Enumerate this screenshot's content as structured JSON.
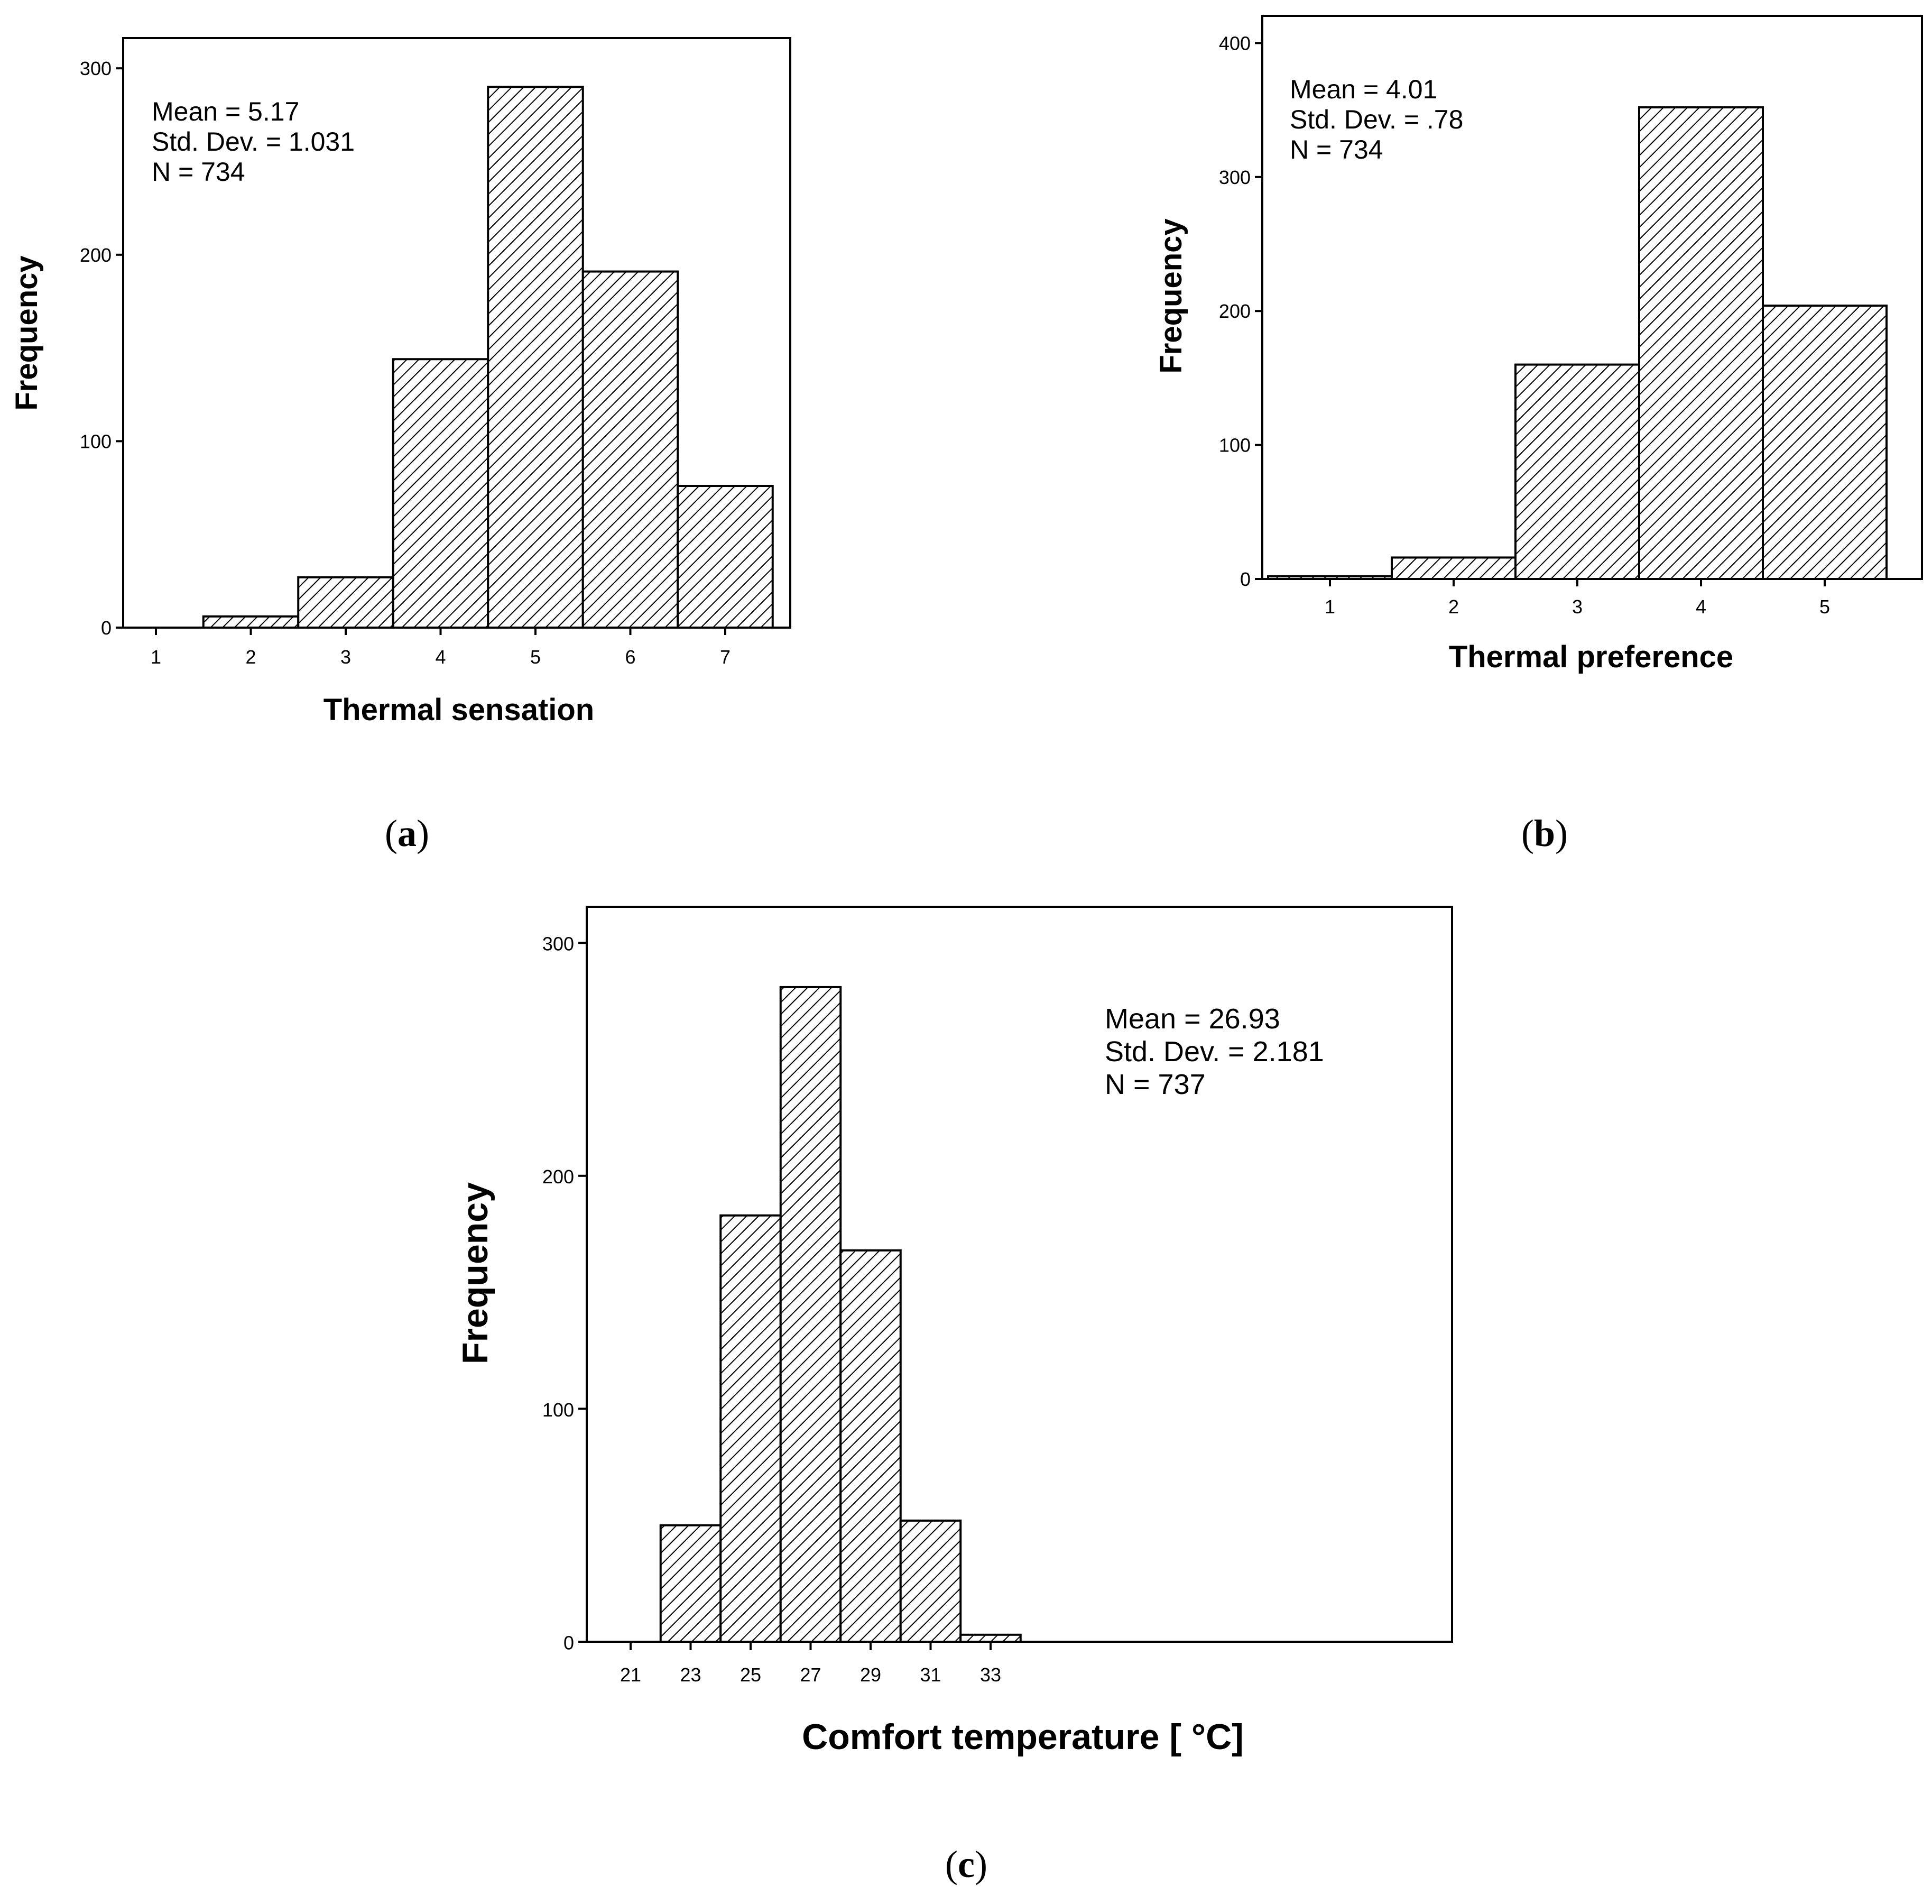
{
  "chart_data": [
    {
      "id": "a",
      "type": "bar",
      "subtype": "histogram",
      "caption_open": "(",
      "caption_letter": "a",
      "caption_close": ")",
      "xlabel": "Thermal sensation",
      "ylabel": "Frequency",
      "categories": [
        "1",
        "2",
        "3",
        "4",
        "5",
        "6",
        "7"
      ],
      "values": [
        0,
        6,
        27,
        144,
        290,
        191,
        76
      ],
      "x_ticks": [
        "1",
        "2",
        "3",
        "4",
        "5",
        "6",
        "7"
      ],
      "y_ticks": [
        "0",
        "100",
        "200",
        "300"
      ],
      "ylim": [
        0,
        315
      ],
      "stats": {
        "mean": "Mean =  5.17",
        "std": "Std. Dev. =   1.031",
        "n": "N =  734"
      }
    },
    {
      "id": "b",
      "type": "bar",
      "subtype": "histogram",
      "caption_open": "(",
      "caption_letter": "b",
      "caption_close": ")",
      "xlabel": "Thermal preference",
      "ylabel": "Frequency",
      "categories": [
        "1",
        "2",
        "3",
        "4",
        "5"
      ],
      "values": [
        2,
        16,
        160,
        352,
        204
      ],
      "x_ticks": [
        "1",
        "2",
        "3",
        "4",
        "5"
      ],
      "y_ticks": [
        "0",
        "100",
        "200",
        "300",
        "400"
      ],
      "ylim": [
        0,
        420
      ],
      "stats": {
        "mean": "Mean =  4.01",
        "std": "Std. Dev. =    .78",
        "n": "N =  734"
      }
    },
    {
      "id": "c",
      "type": "bar",
      "subtype": "histogram",
      "caption_open": "(",
      "caption_letter": "c",
      "caption_close": ")",
      "xlabel": "Comfort temperature [ °C]",
      "ylabel": "Frequency",
      "bin_edges": [
        22,
        24,
        26,
        28,
        30,
        32,
        34
      ],
      "values": [
        50,
        183,
        281,
        168,
        52,
        3
      ],
      "x_ticks": [
        "21",
        "23",
        "25",
        "27",
        "29",
        "31",
        "33"
      ],
      "y_ticks": [
        "0",
        "100",
        "200",
        "300"
      ],
      "ylim": [
        0,
        320
      ],
      "stats": {
        "mean": "Mean =  26.93",
        "std": "Std. Dev. =   2.181",
        "n": "N =  737"
      }
    }
  ]
}
